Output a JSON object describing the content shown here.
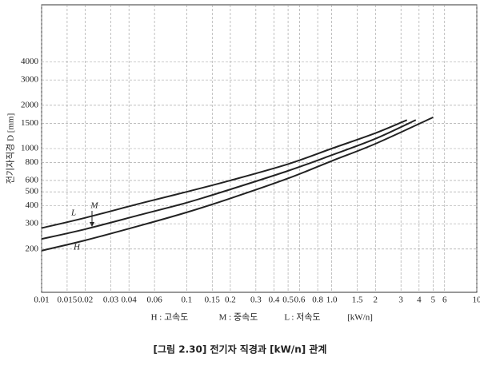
{
  "chart_data": {
    "type": "line",
    "y_label": "전기자직경 D [mm]",
    "x_label_parts": [
      "H : 고속도",
      "M : 중속도",
      "L : 저속도",
      "[kW/n]"
    ],
    "caption": "[그림 2.30] 전기자 직경과 [kW/n] 관계",
    "x": [
      0.01,
      0.02,
      0.05,
      0.1,
      0.2,
      0.5,
      1,
      2
    ],
    "series": [
      {
        "name": "L",
        "color": "#222222",
        "x": [
          0.01,
          0.02,
          0.05,
          0.1,
          0.2,
          0.5,
          1,
          2,
          3.3
        ],
        "values": [
          280,
          330,
          420,
          500,
          600,
          780,
          1000,
          1280,
          1580
        ]
      },
      {
        "name": "M",
        "color": "#222222",
        "x": [
          0.01,
          0.02,
          0.05,
          0.1,
          0.2,
          0.5,
          1,
          2,
          3.8
        ],
        "values": [
          235,
          275,
          350,
          420,
          520,
          700,
          900,
          1170,
          1580
        ]
      },
      {
        "name": "H",
        "color": "#222222",
        "x": [
          0.01,
          0.02,
          0.05,
          0.1,
          0.2,
          0.5,
          1,
          2,
          5
        ],
        "values": [
          195,
          230,
          295,
          360,
          450,
          620,
          820,
          1080,
          1650
        ]
      }
    ],
    "xlog": true,
    "ylog": true,
    "xlim": [
      0.01,
      10
    ],
    "ylim": [
      100,
      10000
    ],
    "xticks": [
      0.01,
      0.015,
      0.02,
      0.03,
      0.04,
      0.06,
      0.1,
      0.15,
      0.2,
      0.3,
      0.4,
      0.5,
      0.6,
      0.8,
      {
        "value": 1,
        "label": "1.0"
      },
      1.5,
      2,
      3,
      4,
      5,
      6,
      10
    ],
    "yticks": [
      200,
      300,
      400,
      500,
      600,
      800,
      1000,
      1500,
      2000,
      3000,
      4000
    ],
    "grid": true
  }
}
